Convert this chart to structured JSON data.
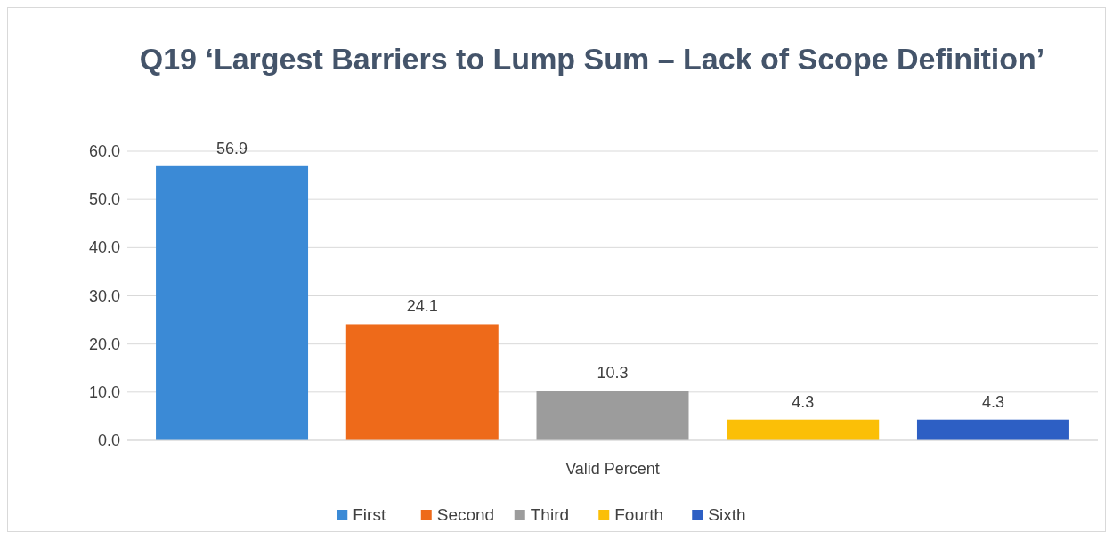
{
  "chart_data": {
    "type": "bar",
    "title": "Q19 ‘Largest Barriers to Lump Sum – Lack of Scope Definition’",
    "categories": [
      "Valid Percent"
    ],
    "series": [
      {
        "name": "First",
        "color": "#3b8ad6",
        "values": [
          56.9
        ]
      },
      {
        "name": "Second",
        "color": "#ee6a1a",
        "values": [
          24.1
        ]
      },
      {
        "name": "Third",
        "color": "#9c9c9c",
        "values": [
          10.3
        ]
      },
      {
        "name": "Fourth",
        "color": "#fbbf07",
        "values": [
          4.3
        ]
      },
      {
        "name": "Sixth",
        "color": "#2d5fc4",
        "values": [
          4.3
        ]
      }
    ],
    "ylim": [
      0,
      60
    ],
    "yticks": [
      {
        "value": 0,
        "label": "0.0"
      },
      {
        "value": 10,
        "label": "10.0"
      },
      {
        "value": 20,
        "label": "20.0"
      },
      {
        "value": 30,
        "label": "30.0"
      },
      {
        "value": 40,
        "label": "40.0"
      },
      {
        "value": 50,
        "label": "50.0"
      },
      {
        "value": 60,
        "label": "60.0"
      }
    ],
    "grid": "y",
    "data_labels": true,
    "legend": "bottom"
  }
}
